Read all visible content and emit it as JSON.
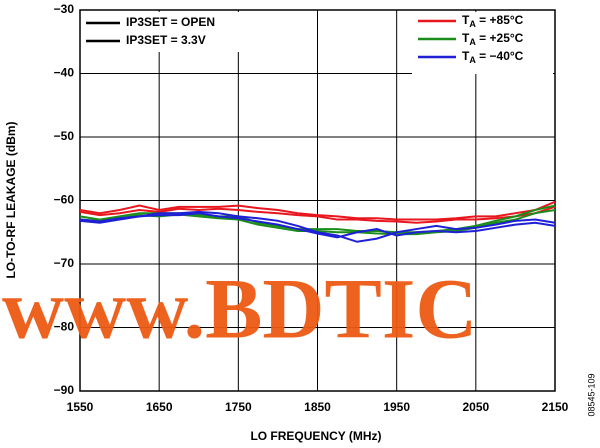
{
  "chart_data": {
    "type": "line",
    "x_label": "LO FREQUENCY (MHz)",
    "y_label": "LO-TO-RF LEAKAGE (dBm)",
    "legend_left": [
      "IP3SET = OPEN",
      "IP3SET = 3.3V"
    ],
    "watermark": "www.BDTIC",
    "figure_code": "08545-109",
    "x": [
      1550,
      1575,
      1600,
      1625,
      1650,
      1675,
      1700,
      1725,
      1750,
      1775,
      1800,
      1825,
      1850,
      1875,
      1900,
      1925,
      1950,
      1975,
      2000,
      2025,
      2050,
      2075,
      2100,
      2125,
      2150
    ],
    "series": [
      {
        "name": "TA = +85°C",
        "color": "#e8161d",
        "values": [
          -61.5,
          -62,
          -61.5,
          -60.8,
          -61.5,
          -61,
          -61,
          -61,
          -60.8,
          -61.2,
          -61.5,
          -62,
          -62.3,
          -62.5,
          -62.8,
          -62.8,
          -63,
          -63,
          -63,
          -62.8,
          -62.5,
          -62.5,
          -62,
          -61.5,
          -60.2
        ]
      },
      {
        "color": "#e8161d",
        "values": [
          -61.8,
          -62.3,
          -62,
          -61.5,
          -61.8,
          -61.3,
          -61.5,
          -61.3,
          -61.5,
          -61.8,
          -62,
          -62.3,
          -62.5,
          -63,
          -63,
          -63.2,
          -63.3,
          -63.5,
          -63.3,
          -63,
          -63,
          -62.8,
          -62.5,
          -62,
          -61
        ]
      },
      {
        "name": "TA = +25°C",
        "color": "#1a8c1a",
        "values": [
          -62.5,
          -63,
          -62.5,
          -62,
          -62,
          -62,
          -62.2,
          -62.5,
          -62.5,
          -63.5,
          -64,
          -64.5,
          -64.5,
          -64.5,
          -64.8,
          -64.8,
          -65,
          -65,
          -64.8,
          -64.5,
          -64,
          -63.2,
          -62.5,
          -61.5,
          -60.8
        ]
      },
      {
        "color": "#1a8c1a",
        "values": [
          -63,
          -63.2,
          -62.8,
          -62.3,
          -62.5,
          -62.2,
          -62.5,
          -62.8,
          -63,
          -63.8,
          -64.3,
          -64.8,
          -64.8,
          -65,
          -65,
          -65.2,
          -65.3,
          -65.3,
          -65,
          -64.8,
          -64.3,
          -63.5,
          -63,
          -62,
          -61.5
        ]
      },
      {
        "name": "TA = −40°C",
        "color": "#1f1fd6",
        "values": [
          -63,
          -63.3,
          -62.8,
          -62.5,
          -62,
          -62,
          -61.8,
          -62,
          -62.5,
          -62.8,
          -63.2,
          -64,
          -65,
          -65.5,
          -66.5,
          -66,
          -65,
          -64.5,
          -64,
          -64.5,
          -64.3,
          -63.8,
          -63.2,
          -63,
          -63.5
        ]
      },
      {
        "color": "#1f1fd6",
        "values": [
          -63.2,
          -63.5,
          -63,
          -62.5,
          -62.3,
          -62.3,
          -62,
          -62.5,
          -62.8,
          -63.3,
          -63.8,
          -64.5,
          -65.2,
          -65.8,
          -65,
          -64.5,
          -65.5,
          -65,
          -64.8,
          -65,
          -64.8,
          -64.3,
          -63.8,
          -63.5,
          -64
        ]
      }
    ],
    "xlim": [
      1550,
      2150
    ],
    "xticks": [
      1550,
      1650,
      1750,
      1850,
      1950,
      2050,
      2150
    ],
    "ylim": [
      -90,
      -30
    ],
    "yticks": [
      {
        "value": -90,
        "label": "−90"
      },
      {
        "value": -80,
        "label": "−80"
      },
      {
        "value": -70,
        "label": "−70"
      },
      {
        "value": -60,
        "label": "−60"
      },
      {
        "value": -50,
        "label": "−50"
      },
      {
        "value": -40,
        "label": "−40"
      },
      {
        "value": -30,
        "label": "−30"
      }
    ],
    "grid": true
  }
}
